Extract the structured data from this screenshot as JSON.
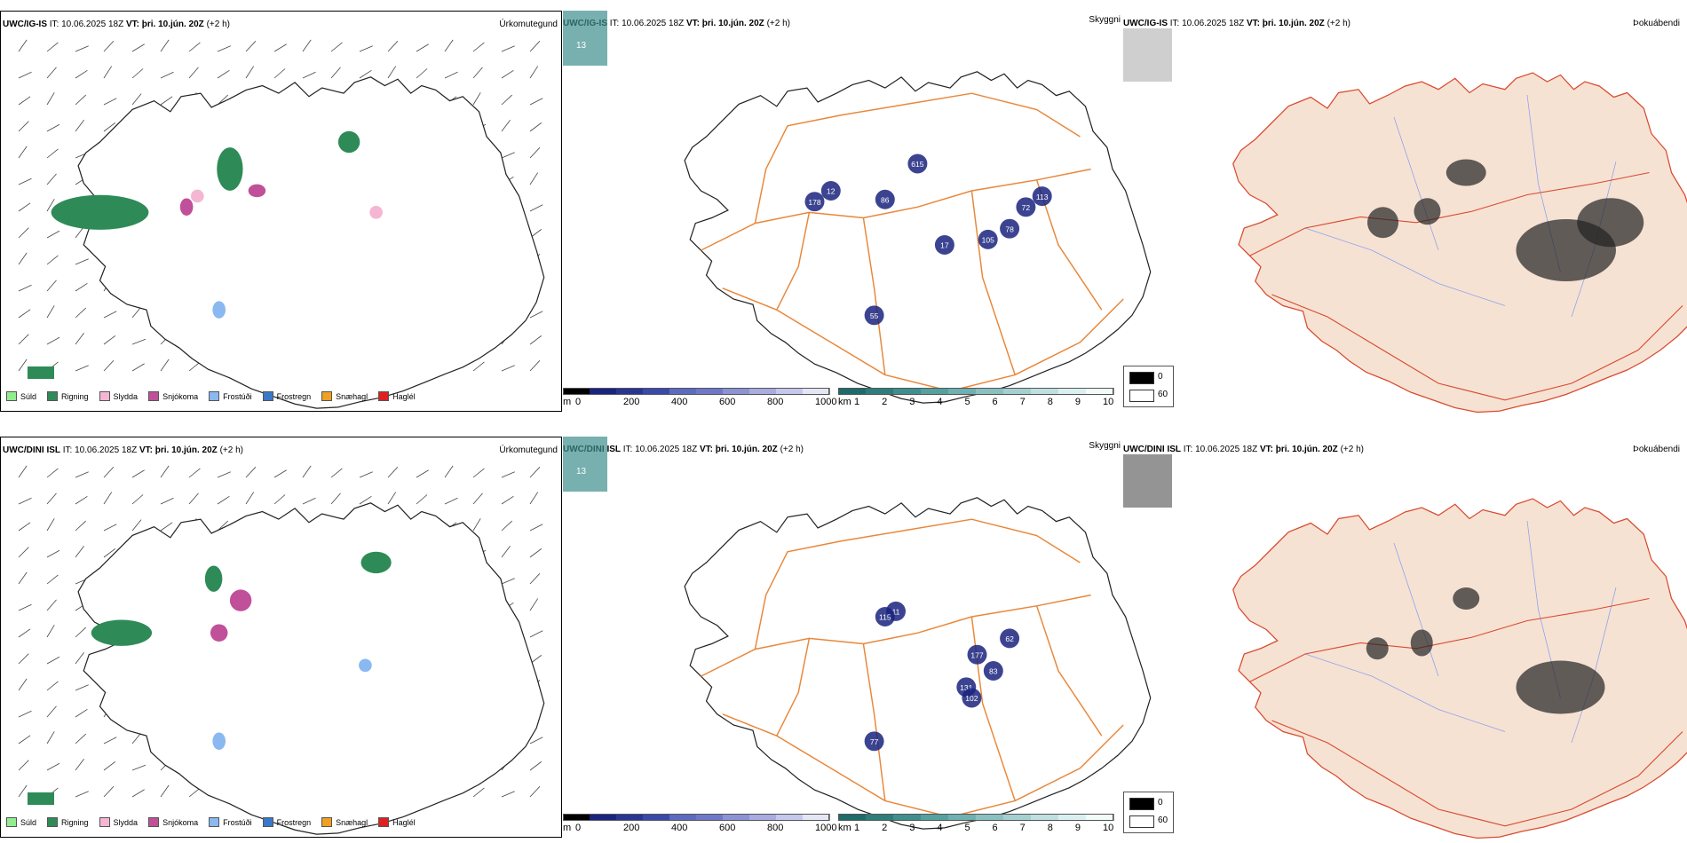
{
  "top": {
    "model": "UWC/IG-IS",
    "it_label": "IT:",
    "it_value": "10.06.2025 18Z",
    "vt_label": "VT:",
    "vt_value": "þri. 10.jún. 20Z",
    "lead": "(+2 h)",
    "left_title": "Úrkomutegund",
    "mid_right_title": "Skyggni",
    "right_title": "Þokuábendi",
    "mid_label_nw": "13",
    "mid_labels": [
      "12",
      "178",
      "86",
      "615",
      "113",
      "72",
      "78",
      "105",
      "17",
      "55"
    ]
  },
  "bottom": {
    "model": "UWC/DINI ISL",
    "it_label": "IT:",
    "it_value": "10.06.2025 18Z",
    "vt_label": "VT:",
    "vt_value": "þri. 10.jún. 20Z",
    "lead": "(+2 h)",
    "left_title": "Úrkomutegund",
    "mid_right_title": "Skyggni",
    "right_title": "Þokuábendi",
    "mid_label_nw": "13",
    "mid_labels": [
      "11",
      "115",
      "62",
      "177",
      "83",
      "131",
      "102",
      "77"
    ]
  },
  "precip_legend": [
    {
      "label": "Súld",
      "color": "#90ee90"
    },
    {
      "label": "Rigning",
      "color": "#2e8b57"
    },
    {
      "label": "Slydda",
      "color": "#f4b6d2"
    },
    {
      "label": "Snjókoma",
      "color": "#c0509a"
    },
    {
      "label": "Frostúði",
      "color": "#8ab8f0"
    },
    {
      "label": "Frostregn",
      "color": "#3a78c8"
    },
    {
      "label": "Snæhagl",
      "color": "#f0a020"
    },
    {
      "label": "Haglél",
      "color": "#e02020"
    }
  ],
  "elev_bar": {
    "unit": "m",
    "ticks": [
      "0",
      "200",
      "400",
      "600",
      "800",
      "1000"
    ],
    "colors": [
      "#000000",
      "#1a237e",
      "#283593",
      "#3949ab",
      "#5c6bc0",
      "#6f78c8",
      "#8c92d4",
      "#a8ace0",
      "#c5c8ec",
      "#e4e6f6"
    ]
  },
  "vis_bar": {
    "unit": "km",
    "ticks": [
      "1",
      "2",
      "3",
      "4",
      "5",
      "6",
      "7",
      "8",
      "9",
      "10"
    ],
    "colors": [
      "#1d6b6b",
      "#2e7d7d",
      "#3f8f8f",
      "#56a0a0",
      "#6fb0b0",
      "#8ac0c0",
      "#a4d0d0",
      "#bfe0e0",
      "#daf0f0",
      "#f2fafa"
    ]
  },
  "fog_legend": {
    "items": [
      {
        "label": "0",
        "color": "#000000"
      },
      {
        "label": "60",
        "color": "#ffffff"
      }
    ]
  }
}
